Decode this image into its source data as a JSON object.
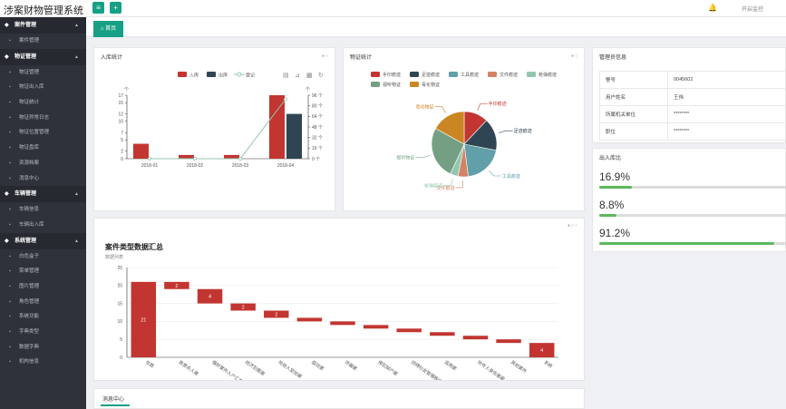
{
  "app_title": "涉案财物管理系统",
  "header": {
    "open_monitor": "开启监控"
  },
  "sidebar": [
    {
      "label": "案件管理",
      "items": [
        "案件管理"
      ]
    },
    {
      "label": "物证管理",
      "items": [
        "物证管理",
        "物证出入库",
        "物证统计",
        "物证异常日志",
        "物证位置管理",
        "物证盘库",
        "资源档案",
        "消息中心"
      ]
    },
    {
      "label": "车辆管理",
      "items": [
        "车辆信息",
        "车辆出入库"
      ]
    },
    {
      "label": "系统管理",
      "items": [
        "白色盒子",
        "菜单管理",
        "图片管理",
        "角色管理",
        "系统功能",
        "字典类型",
        "数据字典",
        "机构信息"
      ]
    }
  ],
  "tabs": {
    "home": "首页"
  },
  "panels": {
    "inout_stats": "入库统计",
    "evidence_stats": "物证统计",
    "admin_info": "管理员信息",
    "inout_ratio": "出入库比",
    "case_summary_title": "案件类型数据汇总",
    "case_summary_subtitle": "数据列表",
    "message_center": "消息中心"
  },
  "admin": {
    "rows": [
      {
        "label": "警号",
        "value": "0045602"
      },
      {
        "label": "用户姓名",
        "value": "王伟"
      },
      {
        "label": "所属机关单位",
        "value": "********"
      },
      {
        "label": "职位",
        "value": "********"
      }
    ]
  },
  "ratios": [
    {
      "text": "16.9%",
      "value": 0.169
    },
    {
      "text": "8.8%",
      "value": 0.088
    },
    {
      "text": "91.2%",
      "value": 0.912
    }
  ],
  "chart_data": [
    {
      "type": "bar",
      "title": "入库统计",
      "legend": [
        "入库",
        "出库",
        "登记"
      ],
      "categories": [
        "2018-01",
        "2018-02",
        "2018-03",
        "2018-04"
      ],
      "series": [
        {
          "name": "入库",
          "type": "bar",
          "values": [
            4,
            1,
            1,
            17
          ],
          "color": "#c23531"
        },
        {
          "name": "出库",
          "type": "bar",
          "values": [
            0,
            0,
            0,
            12
          ],
          "color": "#2f4554"
        },
        {
          "name": "登记",
          "type": "line",
          "values": [
            0,
            0,
            0,
            90
          ],
          "color": "#91c7ae"
        }
      ],
      "ylabel_left": "个",
      "ylabel_right": "个",
      "ylim_left": [
        0,
        17
      ],
      "yticks_left": [
        0,
        2,
        5,
        7,
        10,
        12,
        15,
        17
      ],
      "ylim_right": [
        0,
        96
      ],
      "yticks_right": [
        "0 个",
        "16 个",
        "32 个",
        "48 个",
        "64 个",
        "80 个",
        "96 个"
      ]
    },
    {
      "type": "pie",
      "title": "物证统计",
      "legend": [
        "手印痕迹",
        "足迹痕迹",
        "工具痕迹",
        "文件痕迹",
        "枪弹痕迹",
        "视听物证",
        "毒化物证"
      ],
      "slices": [
        {
          "name": "手印痕迹",
          "value": 12,
          "color": "#c23531"
        },
        {
          "name": "足迹痕迹",
          "value": 16,
          "color": "#2f4554"
        },
        {
          "name": "工具痕迹",
          "value": 20,
          "color": "#61a0a8"
        },
        {
          "name": "文件痕迹",
          "value": 5,
          "color": "#d48265"
        },
        {
          "name": "枪弹痕迹",
          "value": 4,
          "color": "#91c7ae"
        },
        {
          "name": "视听物证",
          "value": 26,
          "color": "#749f83"
        },
        {
          "name": "毒化物证",
          "value": 17,
          "color": "#ca8622"
        }
      ]
    },
    {
      "type": "bar",
      "title": "案件类型数据汇总",
      "subtitle": "数据列表",
      "categories": [
        "总数",
        "故意杀人案",
        "强奸案件入户汇案",
        "经济犯罪案",
        "抢劫人室抢案",
        "盗窃案",
        "诈骗案",
        "侵犯财产案",
        "妨碍社会管理秩序案",
        "滥用案",
        "抢夺人身伤害案",
        "其他案件",
        "系统"
      ],
      "values": [
        21,
        2,
        4,
        2,
        2,
        1,
        1,
        1,
        1,
        1,
        1,
        1,
        4
      ],
      "bases": [
        0,
        19,
        15,
        13,
        11,
        10,
        9,
        8,
        7,
        6,
        5,
        4,
        0
      ],
      "labels": [
        "21",
        "2",
        "4",
        "2",
        "2",
        "",
        "",
        "",
        "",
        "",
        "",
        "",
        "4"
      ],
      "ylim": [
        0,
        25
      ],
      "yticks": [
        0,
        5,
        10,
        15,
        20,
        25
      ]
    }
  ]
}
